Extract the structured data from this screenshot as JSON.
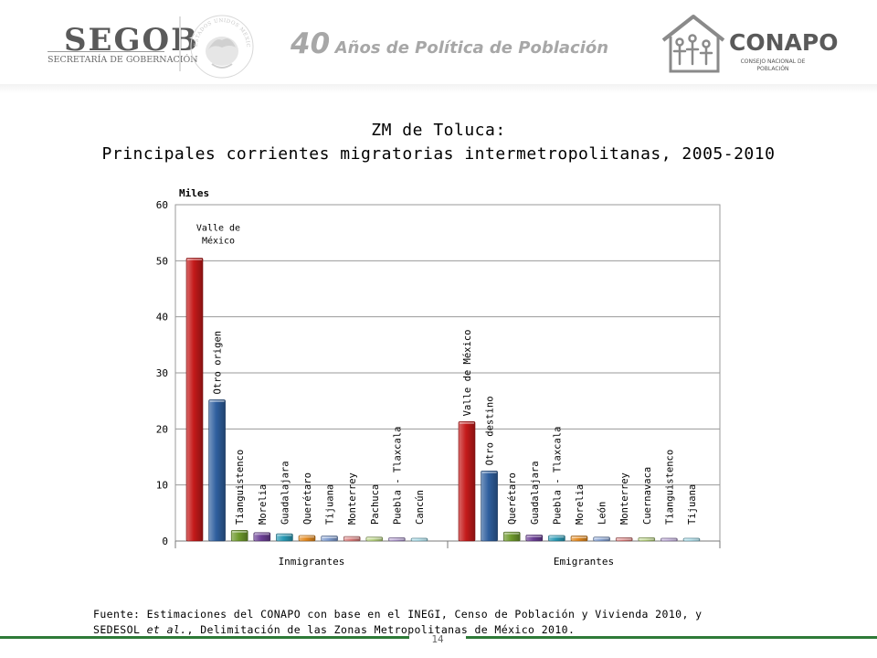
{
  "header": {
    "segob": "SEGOB",
    "segob_sub": "SECRETARÍA DE GOBERNACIÓN",
    "seal_text": "ESTADOS UNIDOS MEXICANOS",
    "tagline_number": "40",
    "tagline_rest": "Años de Política de Población",
    "conapo": "CONAPO",
    "conapo_sub": "CONSEJO NACIONAL DE POBLACIÓN"
  },
  "title": {
    "line1": "ZM de Toluca:",
    "line2": "Principales corrientes migratorias intermetropolitanas, 2005-2010"
  },
  "chart_data": {
    "type": "bar",
    "unit_label": "Miles",
    "ylim": [
      0,
      60
    ],
    "yticks": [
      0,
      10,
      20,
      30,
      40,
      50,
      60
    ],
    "grid": true,
    "groups": [
      {
        "name": "Inmigrantes",
        "bars": [
          {
            "label": "Valle de México",
            "value": 50.5,
            "color": "#c41a1a"
          },
          {
            "label": "Otro origen",
            "value": 25.2,
            "color": "#2f5f9e"
          },
          {
            "label": "Tianguistenco",
            "value": 1.9,
            "color": "#6e9a2c"
          },
          {
            "label": "Morelia",
            "value": 1.5,
            "color": "#6b3f95"
          },
          {
            "label": "Guadalajara",
            "value": 1.3,
            "color": "#2a9ab5"
          },
          {
            "label": "Querétaro",
            "value": 1.0,
            "color": "#e48a1f"
          },
          {
            "label": "Tijuana",
            "value": 0.9,
            "color": "#7f9ccf"
          },
          {
            "label": "Monterrey",
            "value": 0.8,
            "color": "#d97b7a"
          },
          {
            "label": "Pachuca",
            "value": 0.7,
            "color": "#b3cf7a"
          },
          {
            "label": "Puebla - Tlaxcala",
            "value": 0.6,
            "color": "#a991c9"
          },
          {
            "label": "Cancún",
            "value": 0.5,
            "color": "#8fd0e0"
          }
        ]
      },
      {
        "name": "Emigrantes",
        "bars": [
          {
            "label": "Valle de México",
            "value": 21.3,
            "color": "#c41a1a"
          },
          {
            "label": "Otro destino",
            "value": 12.5,
            "color": "#2f5f9e"
          },
          {
            "label": "Querétaro",
            "value": 1.6,
            "color": "#6e9a2c"
          },
          {
            "label": "Guadalajara",
            "value": 1.1,
            "color": "#6b3f95"
          },
          {
            "label": "Puebla - Tlaxcala",
            "value": 1.0,
            "color": "#2a9ab5"
          },
          {
            "label": "Morelia",
            "value": 0.9,
            "color": "#e48a1f"
          },
          {
            "label": "León",
            "value": 0.7,
            "color": "#7f9ccf"
          },
          {
            "label": "Monterrey",
            "value": 0.6,
            "color": "#d97b7a"
          },
          {
            "label": "Cuernavaca",
            "value": 0.6,
            "color": "#b3cf7a"
          },
          {
            "label": "Tianguistenco",
            "value": 0.5,
            "color": "#a991c9"
          },
          {
            "label": "Tijuana",
            "value": 0.5,
            "color": "#8fd0e0"
          }
        ]
      }
    ]
  },
  "source": {
    "line1": "Fuente: Estimaciones del CONAPO con base en el INEGI, Censo de Población y Vivienda 2010, y",
    "line2_pre": "SEDESOL ",
    "line2_italic": "et al.",
    "line2_post": ", Delimitación de las Zonas Metropolitanas de México  2010."
  },
  "page_number": "14"
}
